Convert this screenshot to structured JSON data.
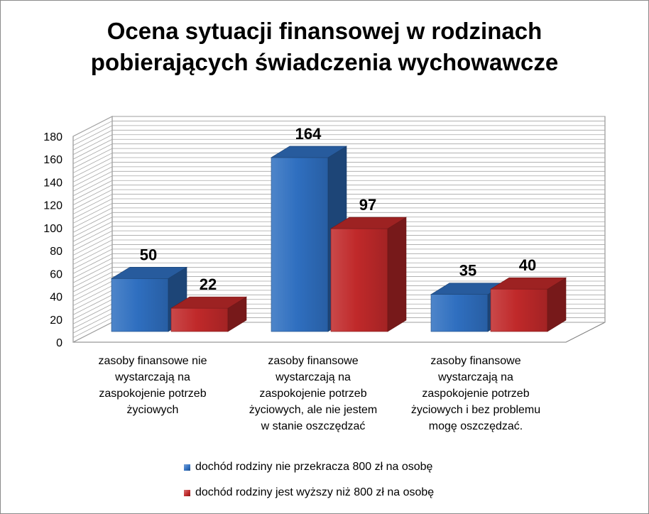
{
  "chart_data": {
    "type": "bar",
    "title_lines": [
      "Ocena sytuacji finansowej w rodzinach",
      "pobierających świadczenia wychowawcze"
    ],
    "categories": [
      [
        "zasoby finansowe nie",
        "wystarczają na",
        "zaspokojenie potrzeb",
        "życiowych"
      ],
      [
        "zasoby finansowe",
        "wystarczają na",
        "zaspokojenie potrzeb",
        "życiowych, ale nie jestem",
        "w stanie oszczędzać"
      ],
      [
        "zasoby finansowe",
        "wystarczają na",
        "zaspokojenie potrzeb",
        "życiowych i bez problemu",
        "mogę oszczędzać."
      ]
    ],
    "series": [
      {
        "name": "dochód rodziny nie przekracza 800 zł na osobę",
        "values": [
          50,
          164,
          35
        ],
        "color": "#2f6fc0"
      },
      {
        "name": "dochód rodziny jest wyższy niż 800 zł na osobę",
        "values": [
          22,
          97,
          40
        ],
        "color": "#c0292a"
      }
    ],
    "yticks": [
      0,
      20,
      40,
      60,
      80,
      100,
      120,
      140,
      160,
      180
    ],
    "ylim": [
      0,
      180
    ],
    "grid": true,
    "style": "3d-clustered-column",
    "legend_position": "bottom"
  }
}
